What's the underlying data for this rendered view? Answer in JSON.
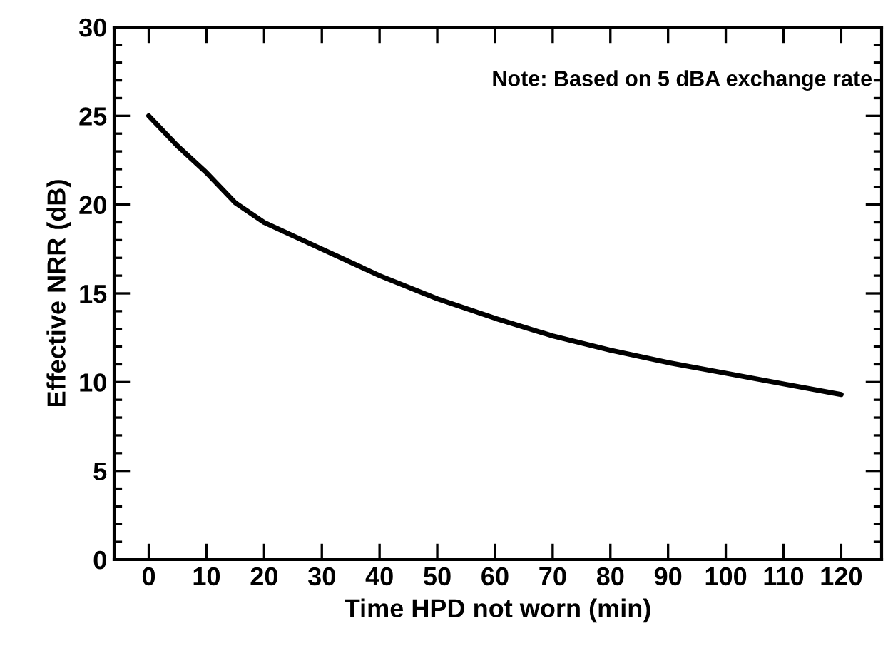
{
  "chart_data": {
    "type": "line",
    "xlabel": "Time HPD not worn (min)",
    "ylabel": "Effective NRR (dB)",
    "annotations": [
      "Note: Based on 5 dBA exchange rate"
    ],
    "x": [
      0,
      5,
      10,
      15,
      20,
      30,
      40,
      50,
      60,
      70,
      80,
      90,
      100,
      110,
      120
    ],
    "series": [
      {
        "color": "#000000",
        "values": [
          25,
          23.3,
          21.8,
          20.1,
          19.0,
          17.5,
          16.0,
          14.7,
          13.6,
          12.6,
          11.8,
          11.1,
          10.5,
          9.9,
          9.3
        ]
      }
    ],
    "xlim": [
      -6,
      127
    ],
    "ylim": [
      0,
      30
    ],
    "xticks": [
      0,
      10,
      20,
      30,
      40,
      50,
      60,
      70,
      80,
      90,
      100,
      110,
      120
    ],
    "yticks": [
      0,
      5,
      10,
      15,
      20,
      25,
      30
    ],
    "grid": false,
    "legend": false,
    "marker": "none",
    "line_style": "solid"
  }
}
